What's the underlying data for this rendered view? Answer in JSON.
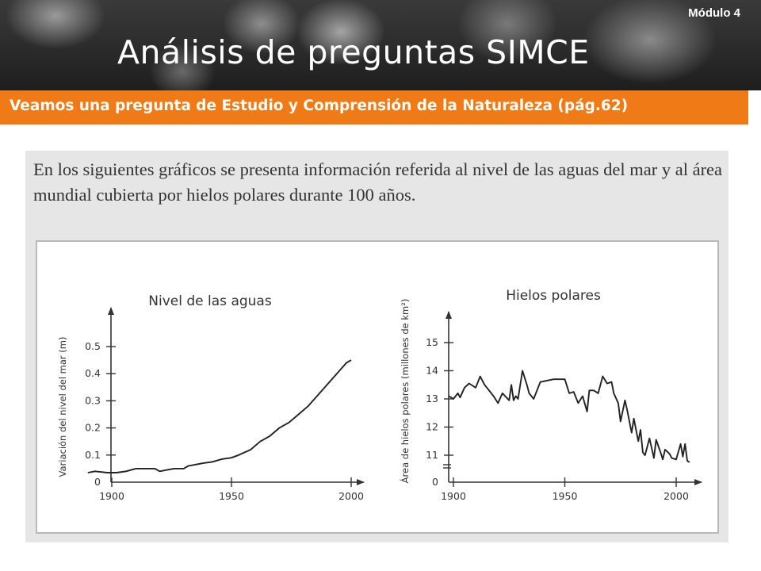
{
  "header": {
    "module": "Módulo 4",
    "title": "Análisis de preguntas SIMCE",
    "subtitle": "Veamos una pregunta de Estudio y Comprensión de la Naturaleza (pág.62)"
  },
  "question": {
    "text": "En los siguientes gráficos se presenta información referida al nivel de las aguas del mar y al área mundial cubierta por hielos polares durante 100 años."
  },
  "colors": {
    "accent": "#ef7a16",
    "panel": "#e6e6e6",
    "line": "#222222"
  },
  "chart_data": [
    {
      "type": "line",
      "title": "Nivel de las aguas",
      "xlabel": "",
      "ylabel": "Variación del nivel del mar (m)",
      "xlim": [
        1890,
        2010
      ],
      "ylim": [
        0,
        0.55
      ],
      "xticks": [
        1900,
        1950,
        2000
      ],
      "yticks": [
        0,
        0.1,
        0.2,
        0.3,
        0.4,
        0.5
      ],
      "ytick_labels": [
        "0",
        "0.1",
        "0.2",
        "0.3",
        "0.4",
        "0.5"
      ],
      "grid": false,
      "series": [
        {
          "x": [
            1890,
            1893,
            1898,
            1902,
            1906,
            1910,
            1914,
            1918,
            1920,
            1923,
            1926,
            1930,
            1932,
            1935,
            1938,
            1942,
            1946,
            1950,
            1953,
            1958,
            1962,
            1966,
            1970,
            1974,
            1978,
            1982,
            1986,
            1990,
            1994,
            1998,
            2000
          ],
          "y": [
            0.035,
            0.04,
            0.035,
            0.035,
            0.04,
            0.05,
            0.05,
            0.05,
            0.04,
            0.045,
            0.05,
            0.05,
            0.06,
            0.065,
            0.07,
            0.075,
            0.085,
            0.09,
            0.1,
            0.12,
            0.15,
            0.17,
            0.2,
            0.22,
            0.25,
            0.28,
            0.32,
            0.36,
            0.4,
            0.44,
            0.45
          ]
        }
      ]
    },
    {
      "type": "line",
      "title": "Hielos polares",
      "xlabel": "",
      "ylabel": "Área de hielos polares (millones de km²)",
      "xlim": [
        1900,
        2010
      ],
      "ylim": [
        10,
        15.8
      ],
      "xticks": [
        1900,
        1950,
        2000
      ],
      "yticks": [
        11,
        12,
        13,
        14,
        15
      ],
      "ytick_labels": [
        "11",
        "12",
        "13",
        "14",
        "15"
      ],
      "y_origin_label": "0",
      "axis_break": true,
      "grid": false,
      "series": [
        {
          "x": [
            1898,
            1900,
            1902,
            1903,
            1905,
            1907,
            1910,
            1912,
            1914,
            1916,
            1918,
            1920,
            1922,
            1925,
            1926,
            1927,
            1928,
            1929,
            1931,
            1933,
            1934,
            1936,
            1939,
            1942,
            1945,
            1950,
            1952,
            1954,
            1956,
            1958,
            1960,
            1961,
            1963,
            1965,
            1967,
            1969,
            1971,
            1972,
            1974,
            1975,
            1977,
            1978,
            1980,
            1981,
            1983,
            1984,
            1985,
            1986,
            1988,
            1990,
            1991,
            1993,
            1994,
            1995,
            1997,
            1998,
            2000,
            2002,
            2003,
            2004,
            2005,
            2006
          ],
          "y": [
            13.1,
            13.0,
            13.2,
            13.05,
            13.4,
            13.55,
            13.4,
            13.8,
            13.5,
            13.3,
            13.1,
            12.85,
            13.2,
            12.95,
            13.5,
            12.95,
            13.1,
            13.0,
            14.0,
            13.5,
            13.2,
            13.0,
            13.6,
            13.65,
            13.7,
            13.7,
            13.2,
            13.25,
            12.85,
            13.1,
            12.55,
            13.3,
            13.3,
            13.2,
            13.8,
            13.55,
            13.6,
            13.2,
            12.85,
            12.2,
            12.95,
            12.6,
            11.8,
            12.3,
            11.5,
            11.9,
            11.1,
            11.0,
            11.6,
            10.9,
            11.55,
            11.1,
            10.85,
            11.2,
            11.05,
            10.9,
            10.85,
            11.4,
            10.95,
            11.4,
            10.8,
            10.75
          ]
        }
      ]
    }
  ]
}
